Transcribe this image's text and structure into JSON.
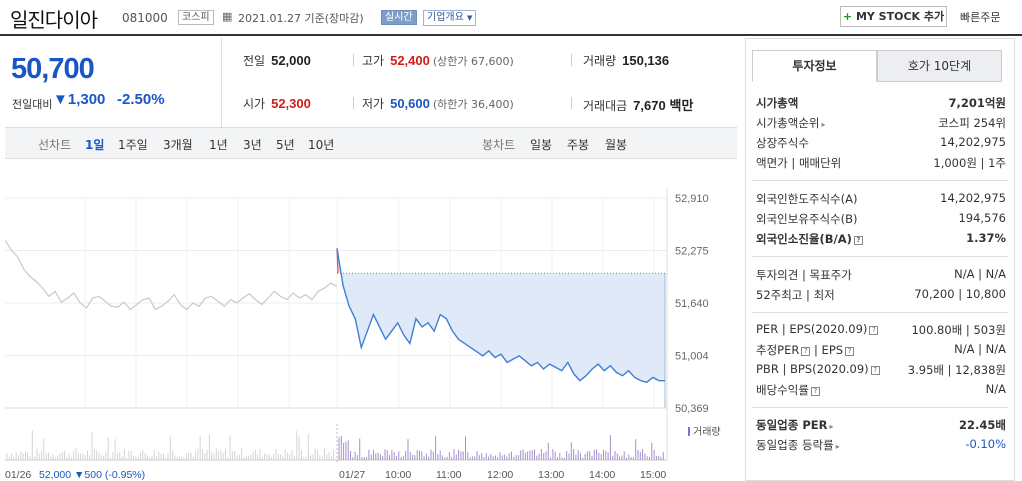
{
  "header": {
    "stock_name": "일진다이아",
    "stock_code": "081000",
    "market_tag": "코스피",
    "date_text": "2021.01.27 기준(장마감)",
    "realtime_tag": "실시간",
    "company_overview_tag": "기업개요",
    "mystock_button": "MY STOCK 추가",
    "fast_order": "빠른주문"
  },
  "price": {
    "current": "50,700",
    "change_label": "전일대비",
    "change_value": "1,300",
    "change_pct": "-2.50%"
  },
  "quote": {
    "prev_close_label": "전일",
    "prev_close": "52,000",
    "high_label": "고가",
    "high": "52,400",
    "upper_limit": "(상한가 67,600)",
    "volume_label": "거래량",
    "volume": "150,136",
    "open_label": "시가",
    "open": "52,300",
    "low_label": "저가",
    "low": "50,600",
    "lower_limit": "(하한가 36,400)",
    "amount_label": "거래대금",
    "amount": "7,670",
    "amount_unit": "백만"
  },
  "period_bar": {
    "label": "선차트",
    "items": [
      "1일",
      "1주일",
      "3개월",
      "1년",
      "3년",
      "5년",
      "10년"
    ],
    "active": "1일",
    "candle_label": "봉차트",
    "candle_items": [
      "일봉",
      "주봉",
      "월봉"
    ]
  },
  "chart_data": {
    "type": "line",
    "y_ticks": [
      "52,910",
      "52,275",
      "51,640",
      "51,004",
      "50,369"
    ],
    "ylim": [
      50369,
      52910
    ],
    "x_ticks": [
      "01/27",
      "10:00",
      "11:00",
      "12:00",
      "13:00",
      "14:00",
      "15:00"
    ],
    "prev_day_label": "01/26",
    "prev_day_close": "52,000",
    "prev_day_change": "▼500 (-0.95%)",
    "volume_legend": "거래량",
    "prev_close_line": 52000,
    "series": [
      {
        "values_prev_day": [
          52400,
          52280,
          52200,
          52050,
          51960,
          51900,
          51820,
          51720,
          51780,
          51650,
          51700,
          51760,
          51640,
          51580,
          51700,
          51720,
          51660,
          51600,
          51590,
          51650,
          51560,
          51620,
          51680,
          51700,
          51560,
          51600,
          51660,
          51740,
          51620,
          51560,
          51640,
          51600,
          51700,
          51720,
          51660,
          51600,
          51680,
          51640,
          51700,
          51750,
          51680,
          51620,
          51700,
          51780,
          51720,
          51680,
          51760,
          51700,
          51740,
          51680,
          51780,
          51820,
          51880,
          51840
        ],
        "values_today": [
          52300,
          51850,
          51600,
          51450,
          51100,
          51300,
          51500,
          51350,
          51200,
          51300,
          51400,
          51250,
          51150,
          51450,
          51350,
          51400,
          51300,
          51500,
          51450,
          51300,
          51200,
          51150,
          51100,
          51050,
          51000,
          51060,
          50980,
          51020,
          50920,
          50960,
          51000,
          50940,
          50880,
          50920,
          50840,
          50900,
          50860,
          50820,
          50920,
          50780,
          50700,
          50760,
          50840,
          50900,
          50820,
          50880,
          50800,
          50760,
          50820,
          50740,
          50700,
          50680,
          50740,
          50700,
          50700
        ]
      }
    ]
  },
  "tabs": {
    "info": "투자정보",
    "orderbook": "호가 10단계"
  },
  "invest_info": {
    "market_cap_label": "시가총액",
    "market_cap": "7,201억원",
    "market_cap_rank_label": "시가총액순위",
    "market_cap_rank": "코스피 254위",
    "shares_label": "상장주식수",
    "shares": "14,202,975",
    "par_label": "액면가",
    "trade_unit_label": "매매단위",
    "par_value": "1,000원",
    "trade_unit": "1주",
    "foreign_limit_label": "외국인한도주식수(A)",
    "foreign_limit": "14,202,975",
    "foreign_hold_label": "외국인보유주식수(B)",
    "foreign_hold": "194,576",
    "foreign_ratio_label": "외국인소진율(B/A)",
    "foreign_ratio": "1.37%",
    "opinion_label": "투자의견",
    "target_label": "목표주가",
    "opinion": "N/A",
    "target": "N/A",
    "high52_label": "52주최고",
    "low52_label": "최저",
    "high52": "70,200",
    "low52": "10,800",
    "per_label": "PER",
    "eps_label": "EPS(2020.09)",
    "per": "100.80배",
    "eps": "503원",
    "est_per_label": "추정PER",
    "est_eps_label": "EPS",
    "est_per": "N/A",
    "est_eps": "N/A",
    "pbr_label": "PBR",
    "bps_label": "BPS(2020.09)",
    "pbr": "3.95배",
    "bps": "12,838원",
    "dividend_label": "배당수익률",
    "dividend": "N/A",
    "sector_per_label": "동일업종 PER",
    "sector_per": "22.45배",
    "sector_change_label": "동일업종 등락률",
    "sector_change": "-0.10%"
  }
}
